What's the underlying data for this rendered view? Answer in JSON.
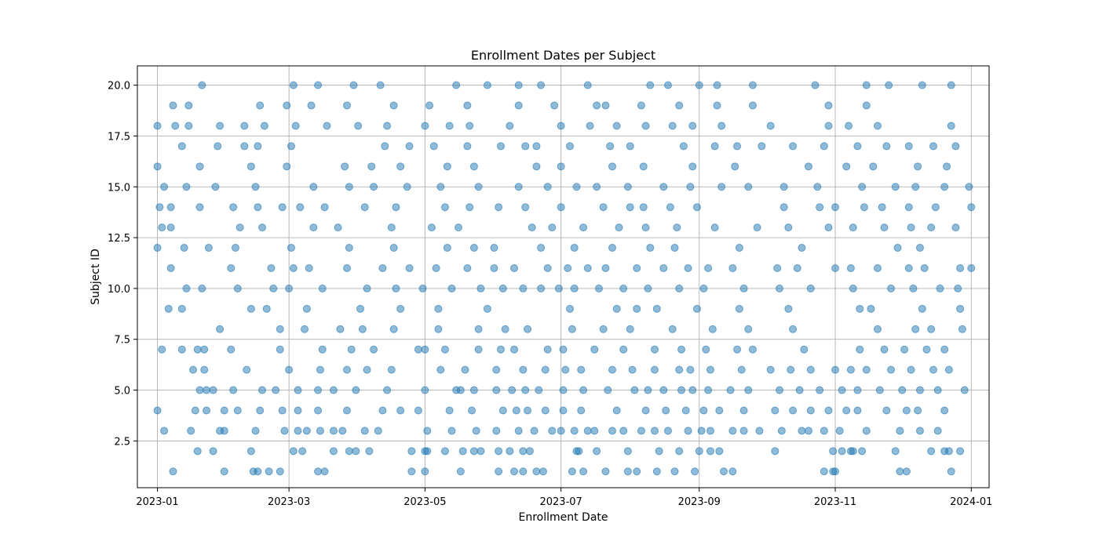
{
  "chart_data": {
    "type": "scatter",
    "title": "Enrollment Dates per Subject",
    "xlabel": "Enrollment Date",
    "ylabel": "Subject ID",
    "x_axis_type": "date",
    "xlim": [
      "2022-12-23",
      "2024-01-09"
    ],
    "ylim": [
      0.2,
      20.95
    ],
    "x_ticks": [
      "2023-01",
      "2023-03",
      "2023-05",
      "2023-07",
      "2023-09",
      "2023-11",
      "2024-01"
    ],
    "y_ticks": [
      "2.5",
      "5.0",
      "7.5",
      "10.0",
      "12.5",
      "15.0",
      "17.5",
      "20.0"
    ],
    "grid": true,
    "marker_color": "#1f77b4",
    "marker_alpha": 0.5,
    "points_by_subject": [
      {
        "subject": 1,
        "dates": [
          "2023-01-08",
          "2023-01-31",
          "2023-02-13",
          "2023-02-15",
          "2023-02-20",
          "2023-02-25",
          "2023-03-14",
          "2023-03-17",
          "2023-04-25",
          "2023-05-01",
          "2023-05-17",
          "2023-06-03",
          "2023-06-10",
          "2023-06-14",
          "2023-06-20",
          "2023-06-23",
          "2023-07-06",
          "2023-07-11",
          "2023-07-21",
          "2023-07-31",
          "2023-08-04",
          "2023-08-13",
          "2023-08-21",
          "2023-08-30",
          "2023-09-12",
          "2023-09-16",
          "2023-10-27",
          "2023-10-31",
          "2023-11-01",
          "2023-11-30",
          "2023-12-03",
          "2023-12-23"
        ]
      },
      {
        "subject": 2,
        "dates": [
          "2023-01-19",
          "2023-01-26",
          "2023-02-12",
          "2023-03-03",
          "2023-03-07",
          "2023-03-21",
          "2023-03-28",
          "2023-03-31",
          "2023-04-06",
          "2023-04-25",
          "2023-05-01",
          "2023-05-02",
          "2023-05-10",
          "2023-05-18",
          "2023-05-23",
          "2023-05-26",
          "2023-06-03",
          "2023-06-08",
          "2023-06-14",
          "2023-06-17",
          "2023-07-08",
          "2023-07-09",
          "2023-07-17",
          "2023-07-31",
          "2023-08-14",
          "2023-08-23",
          "2023-09-01",
          "2023-09-06",
          "2023-09-10",
          "2023-10-05",
          "2023-10-31",
          "2023-11-04",
          "2023-11-08",
          "2023-11-09",
          "2023-11-13",
          "2023-11-28",
          "2023-12-14",
          "2023-12-20",
          "2023-12-22",
          "2023-12-27"
        ]
      },
      {
        "subject": 3,
        "dates": [
          "2023-01-04",
          "2023-01-16",
          "2023-01-29",
          "2023-01-31",
          "2023-02-14",
          "2023-02-27",
          "2023-03-05",
          "2023-03-09",
          "2023-03-15",
          "2023-03-21",
          "2023-03-25",
          "2023-04-04",
          "2023-04-10",
          "2023-05-02",
          "2023-05-13",
          "2023-05-24",
          "2023-06-02",
          "2023-06-12",
          "2023-06-19",
          "2023-06-27",
          "2023-07-01",
          "2023-07-07",
          "2023-07-13",
          "2023-07-16",
          "2023-07-24",
          "2023-07-29",
          "2023-08-06",
          "2023-08-12",
          "2023-08-18",
          "2023-08-27",
          "2023-09-02",
          "2023-09-06",
          "2023-09-16",
          "2023-09-21",
          "2023-09-28",
          "2023-10-08",
          "2023-10-17",
          "2023-10-20",
          "2023-10-27",
          "2023-11-03",
          "2023-11-15",
          "2023-11-30",
          "2023-12-09",
          "2023-12-17"
        ]
      },
      {
        "subject": 4,
        "dates": [
          "2023-01-01",
          "2023-01-18",
          "2023-01-23",
          "2023-01-31",
          "2023-02-06",
          "2023-02-16",
          "2023-02-26",
          "2023-03-05",
          "2023-03-14",
          "2023-03-27",
          "2023-04-12",
          "2023-04-20",
          "2023-04-28",
          "2023-05-12",
          "2023-05-22",
          "2023-06-05",
          "2023-06-11",
          "2023-06-16",
          "2023-06-24",
          "2023-07-02",
          "2023-07-10",
          "2023-07-26",
          "2023-08-08",
          "2023-08-17",
          "2023-08-26",
          "2023-09-03",
          "2023-09-10",
          "2023-09-21",
          "2023-10-05",
          "2023-10-13",
          "2023-10-21",
          "2023-10-29",
          "2023-11-06",
          "2023-11-11",
          "2023-11-24",
          "2023-12-03",
          "2023-12-08",
          "2023-12-20"
        ]
      },
      {
        "subject": 5,
        "dates": [
          "2023-01-20",
          "2023-01-23",
          "2023-01-26",
          "2023-02-04",
          "2023-02-17",
          "2023-02-23",
          "2023-03-05",
          "2023-03-14",
          "2023-03-21",
          "2023-03-31",
          "2023-04-14",
          "2023-05-01",
          "2023-05-15",
          "2023-05-17",
          "2023-05-23",
          "2023-06-02",
          "2023-06-09",
          "2023-06-15",
          "2023-06-21",
          "2023-07-02",
          "2023-07-11",
          "2023-07-22",
          "2023-08-03",
          "2023-08-09",
          "2023-08-16",
          "2023-08-24",
          "2023-08-29",
          "2023-09-05",
          "2023-09-15",
          "2023-09-23",
          "2023-10-07",
          "2023-10-16",
          "2023-10-25",
          "2023-11-04",
          "2023-11-11",
          "2023-11-21",
          "2023-12-01",
          "2023-12-09",
          "2023-12-17",
          "2023-12-29"
        ]
      },
      {
        "subject": 6,
        "dates": [
          "2023-01-17",
          "2023-01-22",
          "2023-02-10",
          "2023-03-01",
          "2023-03-15",
          "2023-03-27",
          "2023-04-05",
          "2023-04-16",
          "2023-05-08",
          "2023-05-19",
          "2023-06-02",
          "2023-06-14",
          "2023-06-24",
          "2023-07-03",
          "2023-07-10",
          "2023-07-24",
          "2023-08-02",
          "2023-08-12",
          "2023-08-23",
          "2023-08-28",
          "2023-09-06",
          "2023-09-20",
          "2023-10-03",
          "2023-10-12",
          "2023-10-21",
          "2023-11-01",
          "2023-11-08",
          "2023-11-15",
          "2023-11-26",
          "2023-12-05",
          "2023-12-15",
          "2023-12-22"
        ]
      },
      {
        "subject": 7,
        "dates": [
          "2023-01-03",
          "2023-01-12",
          "2023-01-19",
          "2023-01-22",
          "2023-02-03",
          "2023-02-25",
          "2023-03-16",
          "2023-03-29",
          "2023-04-08",
          "2023-04-28",
          "2023-05-01",
          "2023-05-10",
          "2023-05-25",
          "2023-06-04",
          "2023-06-10",
          "2023-06-25",
          "2023-07-02",
          "2023-07-16",
          "2023-07-29",
          "2023-08-12",
          "2023-08-24",
          "2023-09-04",
          "2023-09-18",
          "2023-09-25",
          "2023-10-18",
          "2023-11-12",
          "2023-11-23",
          "2023-12-02",
          "2023-12-12",
          "2023-12-20"
        ]
      },
      {
        "subject": 8,
        "dates": [
          "2023-01-29",
          "2023-02-25",
          "2023-03-08",
          "2023-03-24",
          "2023-04-03",
          "2023-04-17",
          "2023-05-07",
          "2023-05-25",
          "2023-06-06",
          "2023-06-16",
          "2023-07-06",
          "2023-07-20",
          "2023-08-01",
          "2023-08-20",
          "2023-09-07",
          "2023-09-23",
          "2023-10-13",
          "2023-11-20",
          "2023-12-07",
          "2023-12-14",
          "2023-12-28"
        ]
      },
      {
        "subject": 9,
        "dates": [
          "2023-01-06",
          "2023-01-12",
          "2023-02-12",
          "2023-02-19",
          "2023-03-09",
          "2023-04-02",
          "2023-04-20",
          "2023-05-07",
          "2023-05-29",
          "2023-07-05",
          "2023-07-26",
          "2023-08-04",
          "2023-08-13",
          "2023-08-31",
          "2023-09-19",
          "2023-10-11",
          "2023-11-12",
          "2023-11-17",
          "2023-12-10",
          "2023-12-27"
        ]
      },
      {
        "subject": 10,
        "dates": [
          "2023-01-14",
          "2023-01-21",
          "2023-02-06",
          "2023-02-22",
          "2023-03-01",
          "2023-03-16",
          "2023-04-05",
          "2023-04-18",
          "2023-04-30",
          "2023-05-13",
          "2023-05-26",
          "2023-06-05",
          "2023-06-14",
          "2023-06-22",
          "2023-06-30",
          "2023-07-07",
          "2023-07-18",
          "2023-07-29",
          "2023-08-09",
          "2023-08-23",
          "2023-09-03",
          "2023-09-21",
          "2023-10-07",
          "2023-10-21",
          "2023-11-09",
          "2023-11-26",
          "2023-12-06",
          "2023-12-18",
          "2023-12-26"
        ]
      },
      {
        "subject": 11,
        "dates": [
          "2023-01-07",
          "2023-02-03",
          "2023-02-21",
          "2023-03-03",
          "2023-03-10",
          "2023-03-27",
          "2023-04-12",
          "2023-04-24",
          "2023-05-06",
          "2023-05-20",
          "2023-06-01",
          "2023-06-10",
          "2023-06-25",
          "2023-07-04",
          "2023-07-13",
          "2023-07-21",
          "2023-08-04",
          "2023-08-16",
          "2023-08-27",
          "2023-09-05",
          "2023-09-16",
          "2023-10-06",
          "2023-10-15",
          "2023-11-01",
          "2023-11-08",
          "2023-11-20",
          "2023-12-04",
          "2023-12-11",
          "2023-12-27",
          "2024-01-01"
        ]
      },
      {
        "subject": 12,
        "dates": [
          "2023-01-01",
          "2023-01-13",
          "2023-01-24",
          "2023-02-05",
          "2023-03-02",
          "2023-03-28",
          "2023-04-17",
          "2023-05-11",
          "2023-05-23",
          "2023-06-01",
          "2023-06-22",
          "2023-07-07",
          "2023-07-24",
          "2023-08-10",
          "2023-08-21",
          "2023-09-19",
          "2023-10-17",
          "2023-11-29",
          "2023-12-09"
        ]
      },
      {
        "subject": 13,
        "dates": [
          "2023-01-03",
          "2023-01-07",
          "2023-02-07",
          "2023-02-17",
          "2023-03-12",
          "2023-03-23",
          "2023-04-16",
          "2023-05-04",
          "2023-05-16",
          "2023-06-18",
          "2023-06-27",
          "2023-07-11",
          "2023-07-27",
          "2023-08-08",
          "2023-08-22",
          "2023-09-08",
          "2023-09-27",
          "2023-10-11",
          "2023-10-29",
          "2023-11-09",
          "2023-11-23",
          "2023-12-05",
          "2023-12-14",
          "2023-12-25"
        ]
      },
      {
        "subject": 14,
        "dates": [
          "2023-01-02",
          "2023-01-07",
          "2023-01-20",
          "2023-02-04",
          "2023-02-15",
          "2023-02-26",
          "2023-03-06",
          "2023-03-17",
          "2023-04-04",
          "2023-04-18",
          "2023-05-10",
          "2023-05-21",
          "2023-06-03",
          "2023-06-15",
          "2023-07-01",
          "2023-07-20",
          "2023-08-01",
          "2023-08-07",
          "2023-08-19",
          "2023-08-31",
          "2023-10-09",
          "2023-10-25",
          "2023-11-01",
          "2023-11-14",
          "2023-11-22",
          "2023-12-04",
          "2023-12-16",
          "2024-01-01"
        ]
      },
      {
        "subject": 15,
        "dates": [
          "2023-01-04",
          "2023-01-14",
          "2023-01-27",
          "2023-02-14",
          "2023-03-12",
          "2023-03-28",
          "2023-04-08",
          "2023-04-23",
          "2023-05-08",
          "2023-05-25",
          "2023-06-12",
          "2023-06-25",
          "2023-07-08",
          "2023-07-17",
          "2023-07-31",
          "2023-08-16",
          "2023-08-28",
          "2023-09-11",
          "2023-09-23",
          "2023-10-09",
          "2023-10-24",
          "2023-11-13",
          "2023-11-28",
          "2023-12-07",
          "2023-12-20",
          "2023-12-31"
        ]
      },
      {
        "subject": 16,
        "dates": [
          "2023-01-01",
          "2023-01-20",
          "2023-02-12",
          "2023-02-28",
          "2023-03-26",
          "2023-04-07",
          "2023-04-20",
          "2023-05-11",
          "2023-05-23",
          "2023-06-20",
          "2023-07-01",
          "2023-07-24",
          "2023-08-07",
          "2023-08-29",
          "2023-09-17",
          "2023-10-20",
          "2023-11-06",
          "2023-11-18",
          "2023-12-08",
          "2023-12-21"
        ]
      },
      {
        "subject": 17,
        "dates": [
          "2023-01-12",
          "2023-01-28",
          "2023-02-09",
          "2023-02-15",
          "2023-03-02",
          "2023-04-13",
          "2023-04-24",
          "2023-05-05",
          "2023-05-20",
          "2023-06-04",
          "2023-06-15",
          "2023-06-20",
          "2023-07-05",
          "2023-07-23",
          "2023-08-01",
          "2023-08-25",
          "2023-09-08",
          "2023-09-18",
          "2023-09-29",
          "2023-10-13",
          "2023-10-27",
          "2023-11-11",
          "2023-11-24",
          "2023-12-04",
          "2023-12-15",
          "2023-12-25"
        ]
      },
      {
        "subject": 18,
        "dates": [
          "2023-01-01",
          "2023-01-09",
          "2023-01-15",
          "2023-01-29",
          "2023-02-09",
          "2023-02-18",
          "2023-03-04",
          "2023-03-18",
          "2023-04-01",
          "2023-04-14",
          "2023-05-01",
          "2023-05-12",
          "2023-05-21",
          "2023-06-08",
          "2023-07-01",
          "2023-07-14",
          "2023-07-26",
          "2023-08-08",
          "2023-08-20",
          "2023-08-29",
          "2023-09-11",
          "2023-10-03",
          "2023-10-29",
          "2023-11-07",
          "2023-11-20",
          "2023-12-23"
        ]
      },
      {
        "subject": 19,
        "dates": [
          "2023-01-08",
          "2023-01-15",
          "2023-02-16",
          "2023-02-28",
          "2023-03-11",
          "2023-03-27",
          "2023-04-17",
          "2023-05-03",
          "2023-05-20",
          "2023-06-12",
          "2023-06-28",
          "2023-07-17",
          "2023-07-21",
          "2023-08-06",
          "2023-08-23",
          "2023-09-09",
          "2023-09-25",
          "2023-10-29",
          "2023-11-15"
        ]
      },
      {
        "subject": 20,
        "dates": [
          "2023-01-21",
          "2023-03-03",
          "2023-03-14",
          "2023-03-30",
          "2023-04-11",
          "2023-05-15",
          "2023-05-29",
          "2023-06-12",
          "2023-06-22",
          "2023-07-13",
          "2023-08-10",
          "2023-08-18",
          "2023-09-01",
          "2023-09-09",
          "2023-09-25",
          "2023-10-23",
          "2023-11-15",
          "2023-11-25",
          "2023-12-10",
          "2023-12-23"
        ]
      }
    ]
  }
}
